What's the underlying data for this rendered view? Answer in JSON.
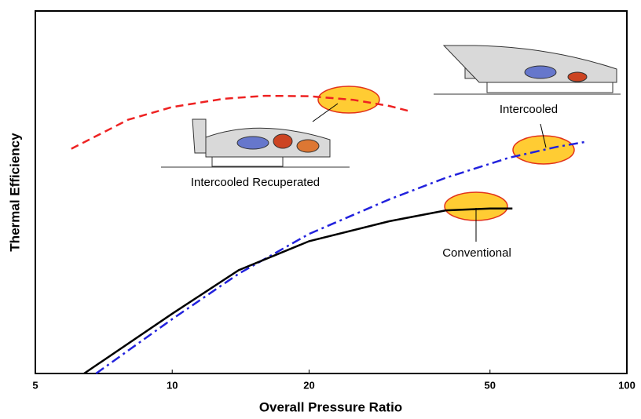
{
  "chart_data": {
    "type": "line",
    "x_label": "Overall Pressure Ratio",
    "y_label": "Thermal Efficiency",
    "xlim": [
      5,
      100
    ],
    "xticks": [
      5,
      10,
      20,
      50,
      100
    ],
    "x_scale": "log",
    "ylim": [
      0,
      100
    ],
    "series": [
      {
        "name": "Intercooled Recuperated",
        "color": "#ee2222",
        "style": "dashed",
        "x": [
          6,
          8,
          10,
          13,
          16,
          20,
          25,
          30,
          33
        ],
        "values": [
          62,
          70,
          73.5,
          75.8,
          76.6,
          76.5,
          75.5,
          73.8,
          72.5
        ]
      },
      {
        "name": "Intercooled",
        "color": "#2222dd",
        "style": "dashdot",
        "x": [
          6.8,
          10,
          14,
          20,
          30,
          40,
          55,
          70,
          82
        ],
        "values": [
          0,
          15,
          27.5,
          38.5,
          48,
          54,
          59.5,
          62.5,
          64
        ]
      },
      {
        "name": "Conventional",
        "color": "#000000",
        "style": "solid",
        "x": [
          6.4,
          10,
          14,
          20,
          30,
          40,
          50,
          56
        ],
        "values": [
          0,
          16.5,
          28.5,
          36.5,
          42,
          45,
          45.5,
          45.5
        ]
      }
    ]
  }
}
